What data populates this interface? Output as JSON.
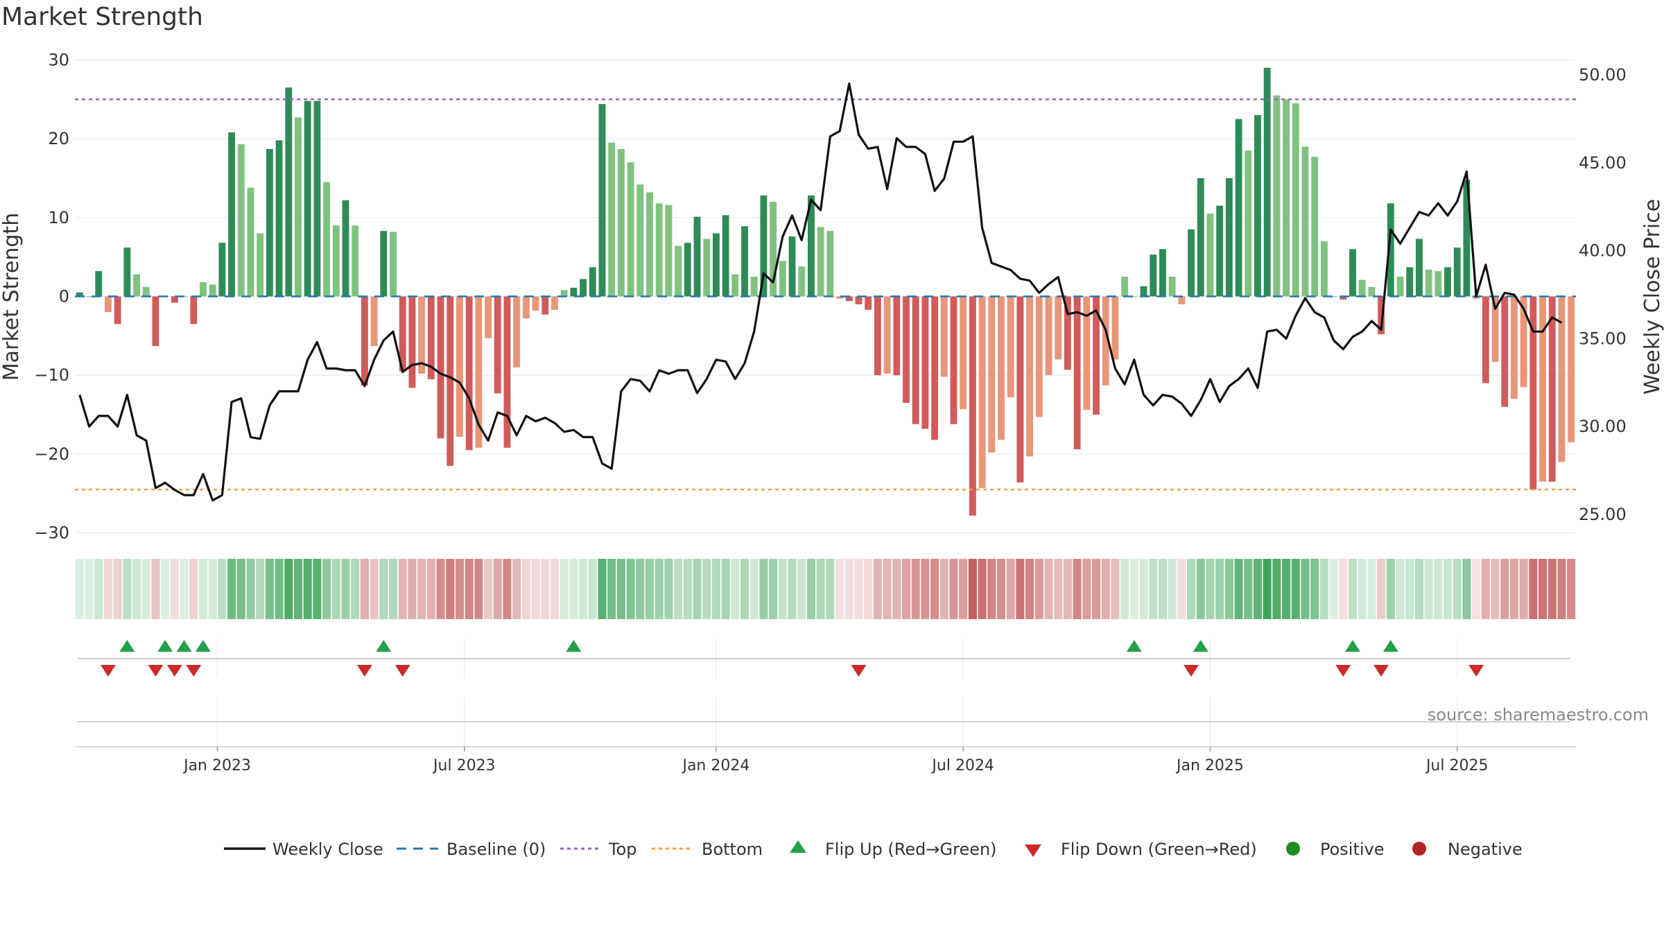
{
  "title": "Market Strength",
  "source": "source: sharemaestro.com",
  "colors": {
    "weekly_close": "#111111",
    "baseline": "#1f77b4",
    "top": "#9467bd",
    "bottom": "#ff9f40",
    "pos_strong": "#2e8b57",
    "pos_weak": "#7fc27f",
    "neg_strong": "#d15b5b",
    "neg_weak": "#e8967a",
    "flip_up": "#22a04b",
    "flip_down": "#cc2a2a",
    "positive": "#228b22",
    "negative": "#b22222",
    "grid": "#e6e6e6"
  },
  "legend": [
    {
      "key": "weekly_close",
      "label": "Weekly Close",
      "icon": "solid-line"
    },
    {
      "key": "baseline",
      "label": "Baseline (0)",
      "icon": "dashed-line"
    },
    {
      "key": "top",
      "label": "Top",
      "icon": "dotted-line"
    },
    {
      "key": "bottom",
      "label": "Bottom",
      "icon": "dotted-line"
    },
    {
      "key": "flip_up",
      "label": "Flip Up (Red→Green)",
      "icon": "triangle-up"
    },
    {
      "key": "flip_down",
      "label": "Flip Down (Green→Red)",
      "icon": "triangle-down"
    },
    {
      "key": "positive",
      "label": "Positive",
      "icon": "dot"
    },
    {
      "key": "negative",
      "label": "Negative",
      "icon": "dot"
    }
  ],
  "chart_data": {
    "type": "bar+line",
    "title": "Market Strength",
    "ylabel_left": "Market Strength",
    "ylabel_right": "Weekly Close Price",
    "ylim_left": [
      -31,
      31
    ],
    "ylim_right": [
      23.5,
      51.3
    ],
    "yticks_left": [
      30,
      20,
      10,
      0,
      -10,
      -20,
      -30
    ],
    "ytick_labels_left": [
      "30",
      "20",
      "10",
      "0",
      "−10",
      "−20",
      "−30"
    ],
    "yticks_right": [
      50,
      45,
      40,
      35,
      30,
      25
    ],
    "ytick_labels_right": [
      "50.00",
      "45.00",
      "40.00",
      "35.00",
      "30.00",
      "25.00"
    ],
    "top_level": 25,
    "bottom_level": -24.5,
    "baseline": 0,
    "x_ticks": [
      {
        "label": "Jan 2023",
        "week": 15
      },
      {
        "label": "Jul 2023",
        "week": 41
      },
      {
        "label": "Jan 2024",
        "week": 67.5
      },
      {
        "label": "Jul 2024",
        "week": 93.5
      },
      {
        "label": "Jan 2025",
        "week": 119.5
      },
      {
        "label": "Jul 2025",
        "week": 145.5
      }
    ],
    "strength": [
      0.5,
      0,
      3.2,
      -2,
      -3.5,
      6.2,
      2.8,
      1.2,
      -6.3,
      0,
      -0.8,
      0,
      -3.5,
      1.8,
      1.5,
      6.8,
      20.8,
      19.3,
      13.8,
      8,
      18.7,
      19.8,
      26.5,
      22.7,
      24.8,
      24.8,
      14.5,
      9,
      12.2,
      9,
      -11.3,
      -6.3,
      8.3,
      8.2,
      -9.5,
      -11.6,
      -9.8,
      -10.5,
      -18,
      -21.5,
      -17.8,
      -19.5,
      -19.2,
      -5.3,
      -12.3,
      -19.2,
      -9,
      -2.8,
      -1.8,
      -2.3,
      -1.7,
      0.8,
      1.1,
      2.2,
      3.7,
      24.4,
      19.5,
      18.7,
      17,
      14.2,
      13.2,
      11.8,
      11.6,
      6.4,
      6.8,
      10.1,
      7.3,
      8,
      10.3,
      2.8,
      8.9,
      2.5,
      12.8,
      12,
      4.5,
      7.6,
      3.8,
      12.8,
      8.8,
      8.3,
      -0.3,
      -0.6,
      -1,
      -1.7,
      -10,
      -9.8,
      -10,
      -13.5,
      -16.2,
      -16.8,
      -18.2,
      -10.2,
      -16.2,
      -14.3,
      -27.8,
      -24.3,
      -19.8,
      -18.2,
      -12.8,
      -23.6,
      -20.3,
      -15.3,
      -10,
      -8,
      -9.3,
      -19.4,
      -14.4,
      -15,
      -11.3,
      -8,
      2.5,
      0,
      1.3,
      5.3,
      6,
      2.5,
      -1,
      8.5,
      15,
      10.5,
      11.5,
      15,
      22.5,
      18.5,
      23,
      29,
      25.5,
      25,
      24.5,
      19,
      17.7,
      7,
      0,
      -0.4,
      6,
      2.1,
      1.2,
      -4.8,
      11.8,
      2.5,
      3.7,
      7.3,
      3.4,
      3.2,
      3.7,
      6.2,
      14.8,
      -0.3,
      -11,
      -8.3,
      -14,
      -13,
      -11.5,
      -24.5,
      -23.5,
      -23.5,
      -21,
      -18.5
    ],
    "weekly_close": [
      31.8,
      30,
      30.6,
      30.6,
      30,
      31.8,
      29.5,
      29.2,
      26.5,
      26.8,
      26.4,
      26.1,
      26.1,
      27.3,
      25.8,
      26.1,
      31.4,
      31.6,
      29.4,
      29.3,
      31.2,
      32,
      32,
      32,
      33.8,
      34.8,
      33.3,
      33.3,
      33.2,
      33.2,
      32.3,
      33.8,
      34.9,
      35.4,
      33.1,
      33.5,
      33.6,
      33.4,
      33,
      32.8,
      32.5,
      31.6,
      30.1,
      29.2,
      30.8,
      30.6,
      29.5,
      30.6,
      30.3,
      30.5,
      30.2,
      29.7,
      29.8,
      29.4,
      29.4,
      27.9,
      27.6,
      32,
      32.7,
      32.6,
      32,
      33.2,
      33,
      33.2,
      33.2,
      31.9,
      32.7,
      33.8,
      33.7,
      32.7,
      33.6,
      35.4,
      38.7,
      38.2,
      40.8,
      42,
      40.6,
      42.9,
      42.3,
      46.5,
      46.8,
      49.5,
      46.6,
      45.8,
      45.9,
      43.5,
      46.4,
      45.9,
      45.9,
      45.5,
      43.4,
      44.1,
      46.2,
      46.2,
      46.5,
      41.3,
      39.3,
      39.1,
      38.9,
      38.4,
      38.3,
      37.6,
      38.1,
      38.5,
      36.4,
      36.5,
      36.3,
      36.6,
      35.5,
      33.3,
      32.4,
      33.8,
      31.8,
      31.2,
      31.8,
      31.7,
      31.3,
      30.6,
      31.5,
      32.7,
      31.4,
      32.3,
      32.7,
      33.3,
      32.2,
      35.4,
      35.5,
      35,
      36.3,
      37.3,
      36.5,
      36.2,
      34.9,
      34.4,
      35.1,
      35.4,
      36,
      35.5,
      41.2,
      40.4,
      41.3,
      42.2,
      42,
      42.7,
      42,
      42.8,
      44.5,
      37.4,
      39.2,
      36.7,
      37.6,
      37.5,
      36.7,
      35.4,
      35.4,
      36.2,
      35.9
    ],
    "flip_up_weeks": [
      5,
      9,
      11,
      13,
      32,
      52,
      111,
      118,
      134,
      138
    ],
    "flip_down_weeks": [
      3,
      8,
      10,
      12,
      30,
      34,
      82,
      117,
      133,
      137,
      147
    ],
    "heat_strip": "per-week color tiles mirroring strength sign and magnitude"
  }
}
